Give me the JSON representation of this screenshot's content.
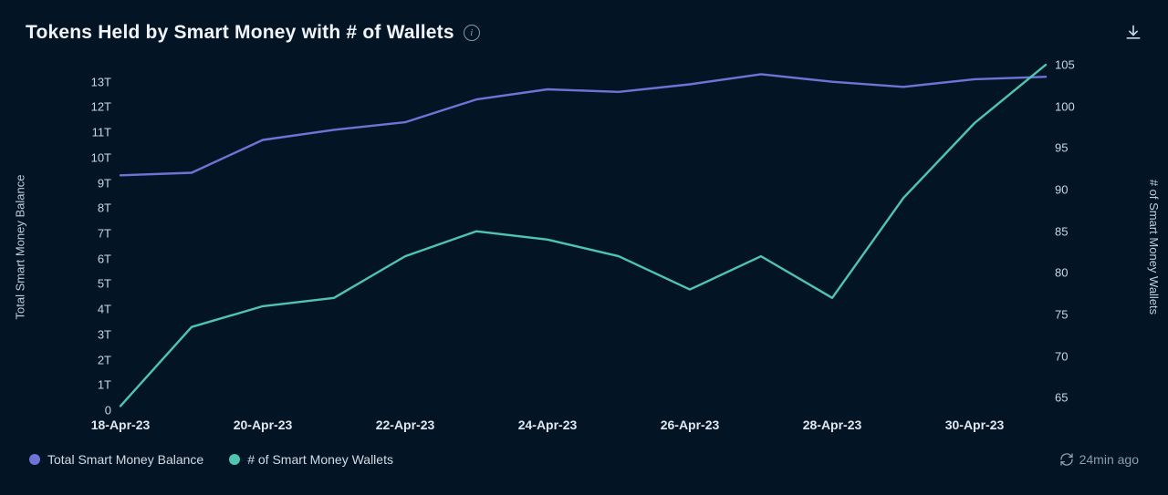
{
  "header": {
    "title": "Tokens Held by Smart Money with # of Wallets"
  },
  "chart": {
    "type": "line-dual-axis",
    "background_color": "#031525",
    "text_color": "#d2dbe4",
    "axis_color": "#5a6a7a",
    "line_width": 2.4,
    "x_dates": [
      "18-Apr-23",
      "19-Apr-23",
      "20-Apr-23",
      "21-Apr-23",
      "22-Apr-23",
      "23-Apr-23",
      "24-Apr-23",
      "25-Apr-23",
      "26-Apr-23",
      "27-Apr-23",
      "28-Apr-23",
      "29-Apr-23",
      "30-Apr-23",
      "01-May-23"
    ],
    "x_tick_labels": [
      "18-Apr-23",
      "20-Apr-23",
      "22-Apr-23",
      "24-Apr-23",
      "26-Apr-23",
      "28-Apr-23",
      "30-Apr-23"
    ],
    "x_tick_indices": [
      0,
      2,
      4,
      6,
      8,
      10,
      12
    ],
    "y_left": {
      "label": "Total Smart Money Balance",
      "min": 0,
      "max": 14,
      "ticks": [
        0,
        1,
        2,
        3,
        4,
        5,
        6,
        7,
        8,
        9,
        10,
        11,
        12,
        13
      ],
      "tick_labels": [
        "0",
        "1T",
        "2T",
        "3T",
        "4T",
        "5T",
        "6T",
        "7T",
        "8T",
        "9T",
        "10T",
        "11T",
        "12T",
        "13T"
      ]
    },
    "y_right": {
      "label": "# of Smart Money Wallets",
      "min": 63.5,
      "max": 106,
      "ticks": [
        65,
        70,
        75,
        80,
        85,
        90,
        95,
        100,
        105
      ],
      "tick_labels": [
        "65",
        "70",
        "75",
        "80",
        "85",
        "90",
        "95",
        "100",
        "105"
      ]
    },
    "series": [
      {
        "name": "Total Smart Money Balance",
        "axis": "left",
        "color": "#6d74d6",
        "values": [
          9.3,
          9.4,
          10.7,
          11.1,
          11.4,
          12.3,
          12.7,
          12.6,
          12.9,
          13.3,
          13.0,
          12.8,
          13.1,
          13.2
        ]
      },
      {
        "name": "# of Smart Money Wallets",
        "axis": "right",
        "color": "#4fc5b0",
        "values": [
          64,
          73.5,
          76,
          77,
          82,
          85,
          84,
          82,
          78,
          82,
          77,
          89,
          98,
          105
        ]
      }
    ]
  },
  "legend": {
    "items": [
      {
        "label": "Total Smart Money Balance",
        "color": "#6d74d6"
      },
      {
        "label": "# of Smart Money Wallets",
        "color": "#4fc5b0"
      }
    ],
    "timestamp": "24min ago"
  }
}
